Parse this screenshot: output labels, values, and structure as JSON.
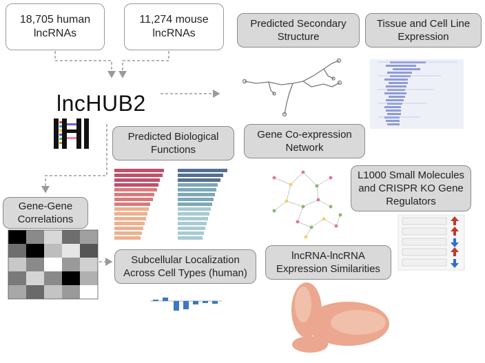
{
  "boxes": {
    "human": "18,705 human\nlncRNAs",
    "mouse": "11,274 mouse\nlncRNAs",
    "secondary": "Predicted Secondary\nStructure",
    "tissue": "Tissue and Cell Line\nExpression",
    "biological": "Predicted Biological\nFunctions",
    "coexpression": "Gene Co-expression\nNetwork",
    "l1000": "L1000 Small Molecules\nand CRISPR KO Gene\nRegulators",
    "correlations": "Gene-Gene\nCorrelations",
    "subcellular": "Subcellular Localization\nAcross Cell Types (human)",
    "similarities": "lncRNA-lncRNA\nExpression Similarities"
  },
  "logo": "lncHUB2",
  "colors": {
    "arrow": "#9a9a9a",
    "box_grey": "#d9d9d9",
    "red_arrow": "#c0392b",
    "blue_arrow": "#2e6fd1"
  }
}
